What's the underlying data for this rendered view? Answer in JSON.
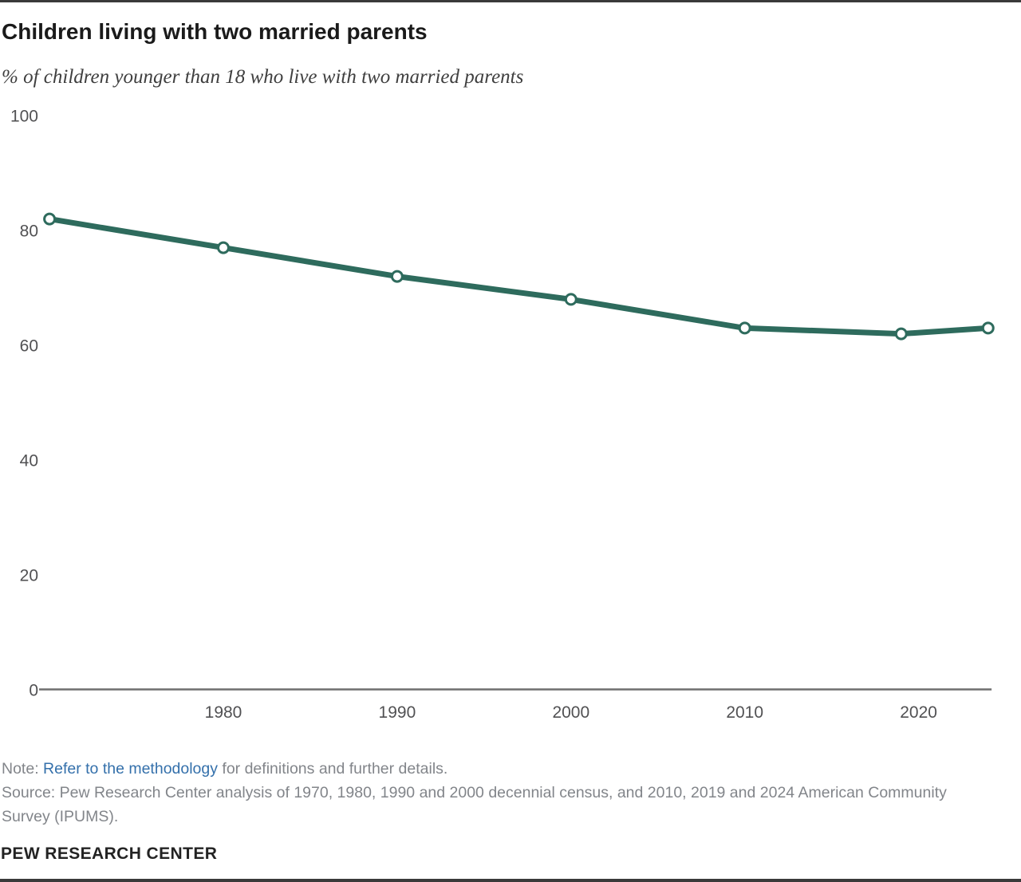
{
  "header": {
    "title": "Children living with two married parents",
    "subtitle": "% of children younger than 18 who live with two married parents"
  },
  "chart_data": {
    "type": "line",
    "title": "Children living with two married parents",
    "subtitle": "% of children younger than 18 who live with two married parents",
    "x": [
      1970,
      1980,
      1990,
      2000,
      2010,
      2019,
      2024
    ],
    "series": [
      {
        "name": "Children living with two married parents",
        "values": [
          82,
          77,
          72,
          68,
          63,
          62,
          63
        ]
      }
    ],
    "x_ticks": [
      "1980",
      "1990",
      "2000",
      "2010",
      "2020"
    ],
    "y_ticks": [
      0,
      20,
      40,
      60,
      80,
      100
    ],
    "xlim": [
      1969.4,
      2024.2
    ],
    "ylim": [
      0,
      100
    ],
    "grid": false,
    "legend": "none",
    "marker": "open-circle",
    "line_color": "#2e6b5d",
    "axis_color": "#6f6f6f",
    "tick_label_color": "#515153"
  },
  "footer": {
    "note_prefix": "Note: ",
    "note_link": "Refer to the methodology",
    "note_suffix": " for definitions and further details.",
    "source": "Source: Pew Research Center analysis of 1970, 1980, 1990 and 2000 decennial census, and 2010, 2019 and 2024 American Community Survey (IPUMS).",
    "brand": "PEW RESEARCH CENTER"
  }
}
